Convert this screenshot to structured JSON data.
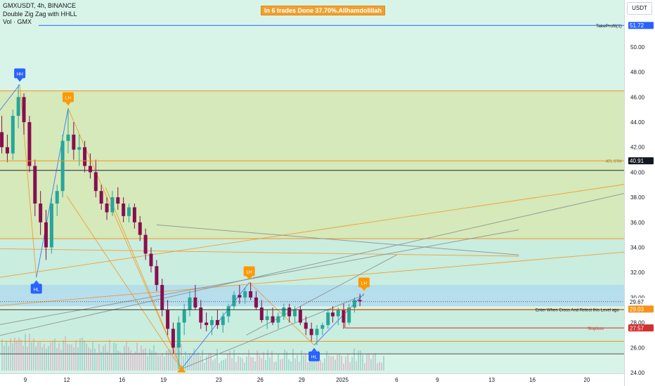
{
  "header": {
    "symbol_line": "GMXUSDT, 4h, BINANCE",
    "indicator_line": "Double Zig Zag with HHLL",
    "volume_line": "Vol · GMX",
    "banner": "In 6 trades Done 37.70%.Allhamdolillah",
    "currency": "USDT"
  },
  "colors": {
    "bull": "#26a69a",
    "bear": "#880e4f",
    "zone_green": "#d5e8b5",
    "zone_light": "#c8ecde",
    "zone_blue": "#b3dcec",
    "orange": "#f7931a",
    "label_blue": "#2962ff",
    "label_orange": "#ff9800",
    "takeprofit": "#2962ff",
    "stoploss": "#d32f2f"
  },
  "chart_data": {
    "type": "candlestick",
    "x_tick_labels": [
      "9",
      "12",
      "16",
      "19",
      "23",
      "26",
      "29",
      "2025",
      "6",
      "9",
      "13",
      "16",
      "20"
    ],
    "y_ticks": [
      24,
      26,
      28,
      30,
      32,
      34,
      36,
      38,
      40,
      42,
      44,
      46,
      48,
      50
    ],
    "y_tick_labels": [
      "24.00",
      "26.00",
      "28.00",
      "30.00",
      "32.00",
      "34.00",
      "36.00",
      "38.00",
      "40.00",
      "42.00",
      "44.00",
      "46.00",
      "48.00",
      "50.00"
    ],
    "ylim": [
      23.9,
      54.6
    ],
    "levels": [
      {
        "name": "takeprofit",
        "value": 51.72,
        "label": "TakeProfit(1)",
        "tag": "51.72"
      },
      {
        "name": "atl-stm",
        "value": 40.91,
        "label": "ATL STM",
        "tag": "40.91"
      },
      {
        "name": "current-price",
        "value": 29.67,
        "tag": "29.67",
        "sub": "01:37:15"
      },
      {
        "name": "entry",
        "value": 29.03,
        "label": "Enter When Cross And Retest this Level ago",
        "tag": "29.03"
      },
      {
        "name": "stoploss",
        "value": 27.57,
        "label": "Stoploss",
        "tag": "27.57"
      }
    ],
    "swing_labels": [
      {
        "text": "HH",
        "day": 8.6,
        "price": 47.0,
        "kind": "high"
      },
      {
        "text": "LH",
        "day": 12.1,
        "price": 45.1,
        "kind": "high"
      },
      {
        "text": "HL",
        "day": 9.8,
        "price": 31.6,
        "kind": "low"
      },
      {
        "text": "LH",
        "day": 25.2,
        "price": 31.2,
        "kind": "high"
      },
      {
        "text": "HL",
        "day": 29.9,
        "price": 26.2,
        "kind": "low"
      },
      {
        "text": "LH",
        "day": 33.6,
        "price": 30.3,
        "kind": "high"
      }
    ],
    "trendlines": [
      {
        "from": [
          6.5,
          44.0
        ],
        "to": [
          8.6,
          47.0
        ],
        "color": "blue"
      },
      {
        "from": [
          8.6,
          47.0
        ],
        "to": [
          9.8,
          31.6
        ],
        "color": "orange"
      },
      {
        "from": [
          9.8,
          31.6
        ],
        "to": [
          12.1,
          45.1
        ],
        "color": "blue"
      },
      {
        "from": [
          12.1,
          45.1
        ],
        "to": [
          20.3,
          24.3
        ],
        "color": "orange"
      },
      {
        "from": [
          20.3,
          24.3
        ],
        "to": [
          25.2,
          31.2
        ],
        "color": "blue"
      },
      {
        "from": [
          25.2,
          31.2
        ],
        "to": [
          29.9,
          26.2
        ],
        "color": "orange"
      },
      {
        "from": [
          29.9,
          26.2
        ],
        "to": [
          33.6,
          30.3
        ],
        "color": "blue"
      },
      {
        "from": [
          12.0,
          38.1
        ],
        "to": [
          20.3,
          24.3
        ],
        "color": "orange"
      },
      {
        "from": [
          14.8,
          38.8
        ],
        "to": [
          20.3,
          24.3
        ],
        "color": "orange"
      },
      {
        "from": [
          6.5,
          31.5
        ],
        "to": [
          60,
          40.2
        ],
        "color": "orange"
      },
      {
        "from": [
          6.5,
          29.3
        ],
        "to": [
          60,
          34.3
        ],
        "color": "orange"
      },
      {
        "from": [
          6.5,
          33.9
        ],
        "to": [
          45.0,
          33.3
        ],
        "color": "orange"
      },
      {
        "from": [
          6.5,
          27.7
        ],
        "to": [
          45.0,
          35.4
        ],
        "color": "gray"
      },
      {
        "from": [
          6.5,
          26.8
        ],
        "to": [
          60,
          40.1
        ],
        "color": "gray"
      },
      {
        "from": [
          18.5,
          35.8
        ],
        "to": [
          45.0,
          33.4
        ],
        "color": "gray"
      },
      {
        "from": [
          20.3,
          24.3
        ],
        "to": [
          33.6,
          30.2
        ],
        "color": "gray"
      },
      {
        "from": [
          25.0,
          27.0
        ],
        "to": [
          36.0,
          33.4
        ],
        "color": "gray"
      }
    ],
    "zones": [
      {
        "from": 34.7,
        "to": 46.5,
        "kind": "green"
      },
      {
        "from": 30.5,
        "to": 34.7,
        "kind": "light"
      },
      {
        "from": 29.3,
        "to": 31.0,
        "kind": "blue"
      },
      {
        "from": 26.5,
        "to": 29.0,
        "kind": "light"
      },
      {
        "from": 25.5,
        "to": 26.5,
        "kind": "light"
      }
    ],
    "horizontal_lines": [
      46.5,
      40.15,
      34.7,
      26.5,
      25.5
    ],
    "candles": [
      [
        6.5,
        41.5,
        43.5,
        40.5,
        42.0
      ],
      [
        6.9,
        42.0,
        44.0,
        41.0,
        43.2
      ],
      [
        7.3,
        43.2,
        44.5,
        41.5,
        42.0
      ],
      [
        7.7,
        42.0,
        43.0,
        40.8,
        41.5
      ],
      [
        8.1,
        41.5,
        45.0,
        41.0,
        44.5
      ],
      [
        8.5,
        44.5,
        47.0,
        43.5,
        46.0
      ],
      [
        8.9,
        46.0,
        46.3,
        43.0,
        44.0
      ],
      [
        9.3,
        44.0,
        44.5,
        40.0,
        40.5
      ],
      [
        9.7,
        40.5,
        41.0,
        36.5,
        37.5
      ],
      [
        10.1,
        37.5,
        38.5,
        35.0,
        36.0
      ],
      [
        10.5,
        36.0,
        37.0,
        33.0,
        34.0
      ],
      [
        10.9,
        34.0,
        38.0,
        33.5,
        37.5
      ],
      [
        11.3,
        37.5,
        39.0,
        36.5,
        38.5
      ],
      [
        11.7,
        38.5,
        43.0,
        38.0,
        42.5
      ],
      [
        12.1,
        42.5,
        45.1,
        41.5,
        43.0
      ],
      [
        12.5,
        43.0,
        44.0,
        41.0,
        41.8
      ],
      [
        12.9,
        41.8,
        43.0,
        40.5,
        42.0
      ],
      [
        13.3,
        42.0,
        42.5,
        40.0,
        40.5
      ],
      [
        13.7,
        40.5,
        41.5,
        39.5,
        40.0
      ],
      [
        14.1,
        40.0,
        41.0,
        38.0,
        38.5
      ],
      [
        14.5,
        38.5,
        39.0,
        37.0,
        37.5
      ],
      [
        14.9,
        37.5,
        38.0,
        36.2,
        36.8
      ],
      [
        15.3,
        36.8,
        38.5,
        36.5,
        38.0
      ],
      [
        15.7,
        38.0,
        38.8,
        37.0,
        37.5
      ],
      [
        16.1,
        37.5,
        38.0,
        36.0,
        36.5
      ],
      [
        16.5,
        36.5,
        37.5,
        36.0,
        37.2
      ],
      [
        16.9,
        37.2,
        37.5,
        35.5,
        36.0
      ],
      [
        17.3,
        36.0,
        36.5,
        34.5,
        35.0
      ],
      [
        17.7,
        35.0,
        35.5,
        33.0,
        33.5
      ],
      [
        18.1,
        33.5,
        34.0,
        32.0,
        32.5
      ],
      [
        18.5,
        32.5,
        33.0,
        30.5,
        31.0
      ],
      [
        18.9,
        31.0,
        31.5,
        28.5,
        29.0
      ],
      [
        19.3,
        29.0,
        29.8,
        27.0,
        27.5
      ],
      [
        19.7,
        27.5,
        28.0,
        25.5,
        26.0
      ],
      [
        20.1,
        26.0,
        28.5,
        24.3,
        28.0
      ],
      [
        20.5,
        28.0,
        29.5,
        27.0,
        29.0
      ],
      [
        20.9,
        29.0,
        30.5,
        28.5,
        30.0
      ],
      [
        21.3,
        30.0,
        31.0,
        29.0,
        29.2
      ],
      [
        21.7,
        29.2,
        29.8,
        27.5,
        28.0
      ],
      [
        22.1,
        28.0,
        28.8,
        27.3,
        27.8
      ],
      [
        22.5,
        27.8,
        28.5,
        27.0,
        28.2
      ],
      [
        22.9,
        28.2,
        29.0,
        27.5,
        27.8
      ],
      [
        23.3,
        27.8,
        28.8,
        27.2,
        28.5
      ],
      [
        23.7,
        28.5,
        29.5,
        28.0,
        29.3
      ],
      [
        24.1,
        29.3,
        30.5,
        29.0,
        30.2
      ],
      [
        24.5,
        30.2,
        31.0,
        29.5,
        30.0
      ],
      [
        24.9,
        30.0,
        30.8,
        29.5,
        30.5
      ],
      [
        25.3,
        30.5,
        31.2,
        29.8,
        30.0
      ],
      [
        25.7,
        30.0,
        30.5,
        29.0,
        29.2
      ],
      [
        26.1,
        29.2,
        29.8,
        28.0,
        28.2
      ],
      [
        26.5,
        28.2,
        29.0,
        27.5,
        28.5
      ],
      [
        26.9,
        28.5,
        29.2,
        27.8,
        28.0
      ],
      [
        27.3,
        28.0,
        28.8,
        27.5,
        28.5
      ],
      [
        27.7,
        28.5,
        29.5,
        28.2,
        29.2
      ],
      [
        28.1,
        29.2,
        29.5,
        28.0,
        28.5
      ],
      [
        28.5,
        28.5,
        29.3,
        28.0,
        29.0
      ],
      [
        28.9,
        29.0,
        29.3,
        27.8,
        28.0
      ],
      [
        29.3,
        28.0,
        28.5,
        27.0,
        27.5
      ],
      [
        29.7,
        27.5,
        28.0,
        26.5,
        27.0
      ],
      [
        30.1,
        27.0,
        27.8,
        26.2,
        27.5
      ],
      [
        30.5,
        27.5,
        28.0,
        27.0,
        27.8
      ],
      [
        30.9,
        27.8,
        29.0,
        27.5,
        28.8
      ],
      [
        31.3,
        28.8,
        29.3,
        28.0,
        28.5
      ],
      [
        31.7,
        28.5,
        29.2,
        27.8,
        29.0
      ],
      [
        32.1,
        29.0,
        29.5,
        27.5,
        28.0
      ],
      [
        32.5,
        28.0,
        29.5,
        27.8,
        29.2
      ],
      [
        32.9,
        29.2,
        30.0,
        28.8,
        29.8
      ],
      [
        33.3,
        29.8,
        30.3,
        29.3,
        29.7
      ]
    ]
  }
}
